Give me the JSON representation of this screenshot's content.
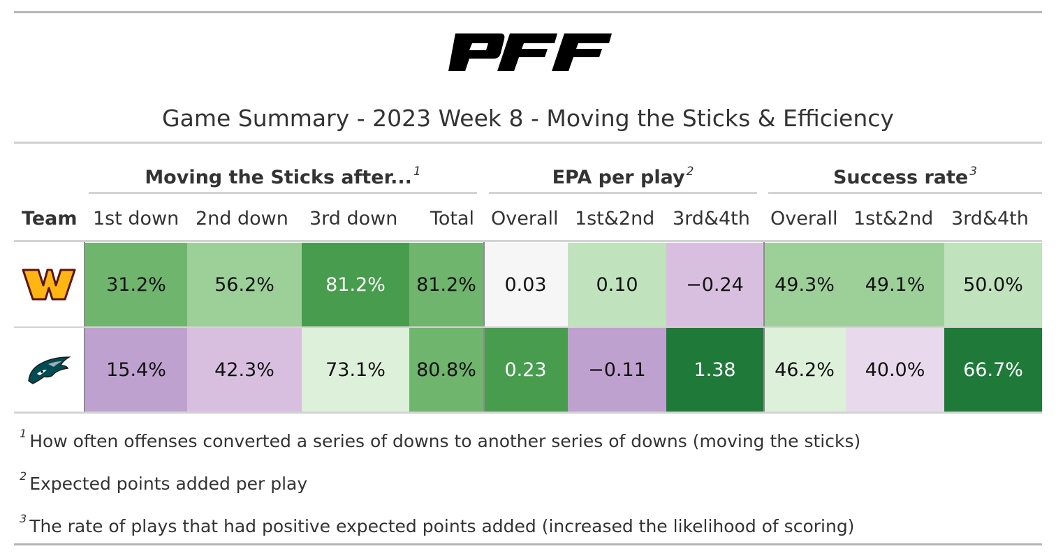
{
  "brand": "PFF",
  "title": "Game Summary - 2023 Week 8 - Moving the Sticks & Efficiency",
  "chart_data": {
    "type": "table",
    "title": "Game Summary - 2023 Week 8 - Moving the Sticks & Efficiency",
    "spanners": [
      {
        "label": "Moving the Sticks after...",
        "footnote": "1"
      },
      {
        "label": "EPA per play",
        "footnote": "2"
      },
      {
        "label": "Success rate",
        "footnote": "3"
      }
    ],
    "columns": [
      "Team",
      "1st down",
      "2nd down",
      "3rd down",
      "Total",
      "Overall",
      "1st&2nd",
      "3rd&4th",
      "Overall",
      "1st&2nd",
      "3rd&4th"
    ],
    "rows": [
      {
        "team": "Washington Commanders",
        "team_icon": "commanders-logo-icon",
        "values": [
          "31.2%",
          "56.2%",
          "81.2%",
          "81.2%",
          "0.03",
          "0.10",
          "−0.24",
          "49.3%",
          "49.1%",
          "50.0%"
        ],
        "colors": [
          "#70b56e",
          "#9dd098",
          "#479d4d",
          "#70b56e",
          "#f6f6f6",
          "#c0e3bd",
          "#d8bfdf",
          "#9dd098",
          "#9dd098",
          "#c0e3bd"
        ],
        "text_colors": [
          "#111",
          "#111",
          "#ffffff",
          "#111",
          "#111",
          "#111",
          "#111",
          "#111",
          "#111",
          "#111"
        ]
      },
      {
        "team": "Philadelphia Eagles",
        "team_icon": "eagles-logo-icon",
        "values": [
          "15.4%",
          "42.3%",
          "73.1%",
          "80.8%",
          "0.23",
          "−0.11",
          "1.38",
          "46.2%",
          "40.0%",
          "66.7%"
        ],
        "colors": [
          "#bfa1cf",
          "#d8bfdf",
          "#ddf0d9",
          "#70b56e",
          "#479d4d",
          "#bfa1cf",
          "#1f7a3a",
          "#ddf0d9",
          "#e8daec",
          "#1f7a3a"
        ],
        "text_colors": [
          "#111",
          "#111",
          "#111",
          "#111",
          "#ffffff",
          "#111",
          "#ffffff",
          "#111",
          "#111",
          "#ffffff"
        ]
      }
    ]
  },
  "footnotes": [
    {
      "mark": "1",
      "text": "How often offenses converted a series of downs to another series of downs (moving the sticks)"
    },
    {
      "mark": "2",
      "text": "Expected points added per play"
    },
    {
      "mark": "3",
      "text": "The rate of plays that had positive expected points added (increased the likelihood of scoring)"
    }
  ]
}
